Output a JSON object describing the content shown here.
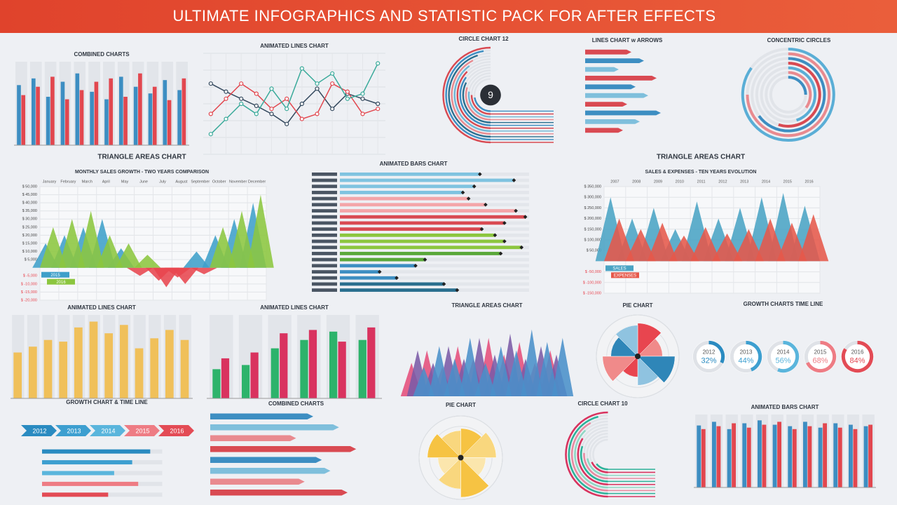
{
  "header": {
    "title": "ULTIMATE INFOGRAPHICS AND STATISTIC PACK FOR AFTER EFFECTS"
  },
  "panels": [
    {
      "title": "COMBINED CHARTS",
      "type": "bars",
      "ylim": [
        0,
        100
      ],
      "series": [
        {
          "color": "#3d8ec2",
          "values": [
            72,
            80,
            58,
            76,
            86,
            64,
            55,
            82,
            70,
            62,
            78,
            66
          ]
        },
        {
          "color": "#e2474f",
          "values": [
            60,
            70,
            82,
            55,
            66,
            76,
            80,
            58,
            86,
            70,
            54,
            80
          ]
        }
      ]
    },
    {
      "title": "ANIMATED LINES CHART",
      "type": "lines",
      "ylim": [
        0,
        100
      ],
      "series": [
        {
          "color": "#34495e",
          "values": [
            70,
            62,
            55,
            48,
            40,
            30,
            50,
            65,
            45,
            60,
            55,
            50
          ]
        },
        {
          "color": "#e2474f",
          "values": [
            40,
            55,
            70,
            60,
            45,
            55,
            35,
            40,
            70,
            62,
            40,
            45
          ]
        },
        {
          "color": "#3aaa9a",
          "values": [
            20,
            35,
            50,
            40,
            65,
            45,
            85,
            70,
            80,
            55,
            60,
            90
          ]
        }
      ]
    },
    {
      "title": "CIRCLE CHART 12",
      "type": "arcs",
      "label": "9",
      "start": 180,
      "sweep": 180,
      "colors": [
        "#d94a52",
        "#3d8ec2",
        "#2a6f8f",
        "#e98a8f",
        "#6fb7d6"
      ],
      "values": [
        100,
        95,
        90,
        85,
        80,
        75,
        70,
        65,
        60,
        55,
        50,
        45
      ]
    },
    {
      "title": "LINES CHART w ARROWS",
      "type": "hbars",
      "arrow": true,
      "xlim": [
        0,
        100
      ],
      "colors": [
        "#d94a52",
        "#3d8ec2",
        "#7fbfdc"
      ],
      "values": [
        55,
        70,
        40,
        85,
        60,
        75,
        50,
        90,
        65,
        45
      ]
    },
    {
      "title": "CONCENTRIC CIRCLES",
      "type": "arcs",
      "start": 0,
      "sweep": 360,
      "colors": [
        "#5aaed6",
        "#e98a8f",
        "#3d8ec2",
        "#d94a52"
      ],
      "values": [
        85,
        75,
        65,
        55,
        45,
        35,
        25
      ]
    },
    {
      "title": "TRIANGLE AREAS CHART",
      "subtitle": "MONTHLY SALES GROWTH - TWO YEARS COMPARISON",
      "type": "triangles",
      "categories": [
        "January",
        "February",
        "March",
        "April",
        "May",
        "June",
        "July",
        "August",
        "September",
        "October",
        "November",
        "December"
      ],
      "ylim": [
        -20000,
        50000
      ],
      "yticks": [
        {
          "value": 50000,
          "label": "$ 50,000"
        },
        {
          "value": 45000,
          "label": "$ 45,000"
        },
        {
          "value": 40000,
          "label": "$ 40,000"
        },
        {
          "value": 35000,
          "label": "$ 35,000"
        },
        {
          "value": 30000,
          "label": "$ 30,000"
        },
        {
          "value": 25000,
          "label": "$ 25,000"
        },
        {
          "value": 20000,
          "label": "$ 20,000"
        },
        {
          "value": 15000,
          "label": "$ 15,000"
        },
        {
          "value": 10000,
          "label": "$ 10,000"
        },
        {
          "value": 5000,
          "label": "$ 5,000"
        },
        {
          "value": -5000,
          "label": "$ -5,000"
        },
        {
          "value": -10000,
          "label": "$ -10,000"
        },
        {
          "value": -15000,
          "label": "$ -15,000"
        },
        {
          "value": -20000,
          "label": "$ -20,000"
        }
      ],
      "negative_color": "#e8454f",
      "series": [
        {
          "name": "2015",
          "color": "#3f9fc9",
          "values": [
            15000,
            20000,
            25000,
            30000,
            12000,
            -5000,
            -8000,
            -6000,
            10000,
            20000,
            30000,
            40000
          ]
        },
        {
          "name": "2016",
          "color": "#8cc63f",
          "values": [
            25000,
            30000,
            35000,
            20000,
            15000,
            8000,
            -12000,
            -10000,
            -4000,
            25000,
            35000,
            45000
          ]
        }
      ]
    },
    {
      "title": "ANIMATED BARS CHART",
      "type": "hbars",
      "xlim": [
        0,
        100
      ],
      "colors": [
        "#7fc3e0",
        "#7fc3e0",
        "#7fc3e0",
        "#7fc3e0",
        "#f4a5a8",
        "#f4a5a8",
        "#f4a5a8",
        "#d94a52",
        "#d94a52",
        "#d94a52",
        "#8cc63f",
        "#8cc63f",
        "#8cc63f",
        "#5aa83a",
        "#5aa83a",
        "#3d8ec2",
        "#3d8ec2",
        "#3d8ec2",
        "#2a6f8f",
        "#2a6f8f"
      ],
      "values": [
        74,
        92,
        71,
        65,
        68,
        77,
        93,
        98,
        87,
        75,
        82,
        87,
        96,
        85,
        45,
        40,
        21,
        30,
        55,
        62
      ]
    },
    {
      "title": "TRIANGLE AREAS CHART",
      "subtitle": "SALES & EXPENSES - TEN YEARS EVOLUTION",
      "type": "triangles",
      "categories": [
        "2007",
        "2008",
        "2009",
        "2010",
        "2011",
        "2012",
        "2013",
        "2014",
        "2015",
        "2016"
      ],
      "ylim": [
        -150000,
        350000
      ],
      "yticks": [
        {
          "value": 350000,
          "label": "$ 350,000"
        },
        {
          "value": 300000,
          "label": "$ 300,000"
        },
        {
          "value": 250000,
          "label": "$ 250,000"
        },
        {
          "value": 200000,
          "label": "$ 200,000"
        },
        {
          "value": 150000,
          "label": "$ 150,000"
        },
        {
          "value": 100000,
          "label": "$ 100,000"
        },
        {
          "value": 50000,
          "label": "$ 50,000"
        },
        {
          "value": -50000,
          "label": "$ -50,000"
        },
        {
          "value": -100000,
          "label": "$ -100,000"
        },
        {
          "value": -150000,
          "label": "$ -150,000"
        }
      ],
      "negative_color": "#e8454f",
      "series": [
        {
          "name": "SALES",
          "color": "#4aa3c4",
          "values": [
            300000,
            200000,
            250000,
            150000,
            280000,
            200000,
            250000,
            300000,
            320000,
            260000
          ]
        },
        {
          "name": "EXPENSES",
          "color": "#e6584a",
          "values": [
            200000,
            150000,
            180000,
            120000,
            160000,
            130000,
            150000,
            200000,
            180000,
            220000
          ]
        }
      ]
    },
    {
      "title": "ANIMATED LINES CHART",
      "type": "bars",
      "ylim": [
        0,
        100
      ],
      "series": [
        {
          "color": "#f0c05a",
          "values": [
            55,
            62,
            70,
            68,
            85,
            92,
            78,
            88,
            60,
            72,
            82,
            70
          ]
        }
      ]
    },
    {
      "title": "ANIMATED LINES CHART",
      "type": "bars",
      "ylim": [
        0,
        100
      ],
      "series": [
        {
          "color": "#2db36b",
          "values": [
            35,
            40,
            60,
            70,
            80,
            70
          ]
        },
        {
          "color": "#d9335f",
          "values": [
            48,
            55,
            78,
            82,
            68,
            85
          ]
        }
      ]
    },
    {
      "title": "TRIANGLE AREAS CHART",
      "type": "triangles",
      "ylim": [
        0,
        100
      ],
      "series": [
        {
          "color": "#e54d7b",
          "values": [
            40,
            55,
            35,
            60,
            45,
            70,
            50,
            65,
            40,
            55
          ]
        },
        {
          "color": "#7b5aa6",
          "values": [
            55,
            40,
            60,
            45,
            70,
            50,
            75,
            45,
            60,
            50
          ]
        },
        {
          "color": "#4a90c9",
          "values": [
            35,
            60,
            45,
            70,
            40,
            60,
            55,
            80,
            65,
            70
          ]
        }
      ]
    },
    {
      "title": "PIE CHART",
      "type": "radial",
      "colors": [
        "#e8454f",
        "#f08a8a",
        "#2f86b8",
        "#8fc3e0"
      ],
      "values": [
        80,
        60,
        90,
        70,
        50,
        85,
        65,
        75
      ]
    },
    {
      "title": "GROWTH CHARTS TIME LINE",
      "type": "donuts",
      "categories": [
        "2012",
        "2013",
        "2014",
        "2015",
        "2016"
      ],
      "values": [
        32,
        44,
        56,
        68,
        84
      ],
      "value_labels": [
        "32%",
        "44%",
        "56%",
        "68%",
        "84%"
      ],
      "colors": [
        "#2a8bc1",
        "#3d9fd0",
        "#5ab5dc",
        "#ee7c84",
        "#e34b55"
      ]
    },
    {
      "title": "GROWTH CHART & TIME LINE",
      "type": "timeline",
      "categories": [
        "2012",
        "2013",
        "2014",
        "2015",
        "2016"
      ],
      "xlim": [
        0,
        100
      ],
      "colors": [
        "#2a8bc1",
        "#3d9fd0",
        "#5ab5dc",
        "#ee7c84",
        "#e34b55"
      ],
      "values": [
        90,
        75,
        60,
        80,
        55
      ]
    },
    {
      "title": "COMBINED CHARTS",
      "type": "hbars",
      "arrow": true,
      "xlim": [
        0,
        100
      ],
      "colors": [
        "#3d8ec2",
        "#7fbfdc",
        "#e98a8f",
        "#d94a52"
      ],
      "values": [
        60,
        75,
        50,
        85,
        65,
        70,
        55,
        80
      ]
    },
    {
      "title": "PIE CHART",
      "type": "radial",
      "colors": [
        "#f6c343",
        "#f9d77e",
        "#fbe6ad"
      ],
      "values": [
        70,
        85,
        60,
        95,
        75,
        55,
        80,
        65
      ]
    },
    {
      "title": "CIRCLE CHART 10",
      "type": "arcs",
      "start": 180,
      "sweep": 180,
      "colors": [
        "#d9335f",
        "#2db39a",
        "#e98aa0",
        "#8fd8c4"
      ],
      "values": [
        100,
        92,
        84,
        76,
        68,
        60,
        52,
        44,
        36,
        28
      ]
    },
    {
      "title": "ANIMATED BARS CHART",
      "type": "bars",
      "ylim": [
        0,
        100
      ],
      "series": [
        {
          "color": "#3d8ec2",
          "values": [
            85,
            90,
            80,
            88,
            92,
            86,
            84,
            90,
            82,
            88,
            86,
            84
          ]
        },
        {
          "color": "#e2474f",
          "values": [
            80,
            84,
            88,
            82,
            86,
            90,
            80,
            84,
            88,
            82,
            80,
            86
          ]
        }
      ]
    }
  ]
}
